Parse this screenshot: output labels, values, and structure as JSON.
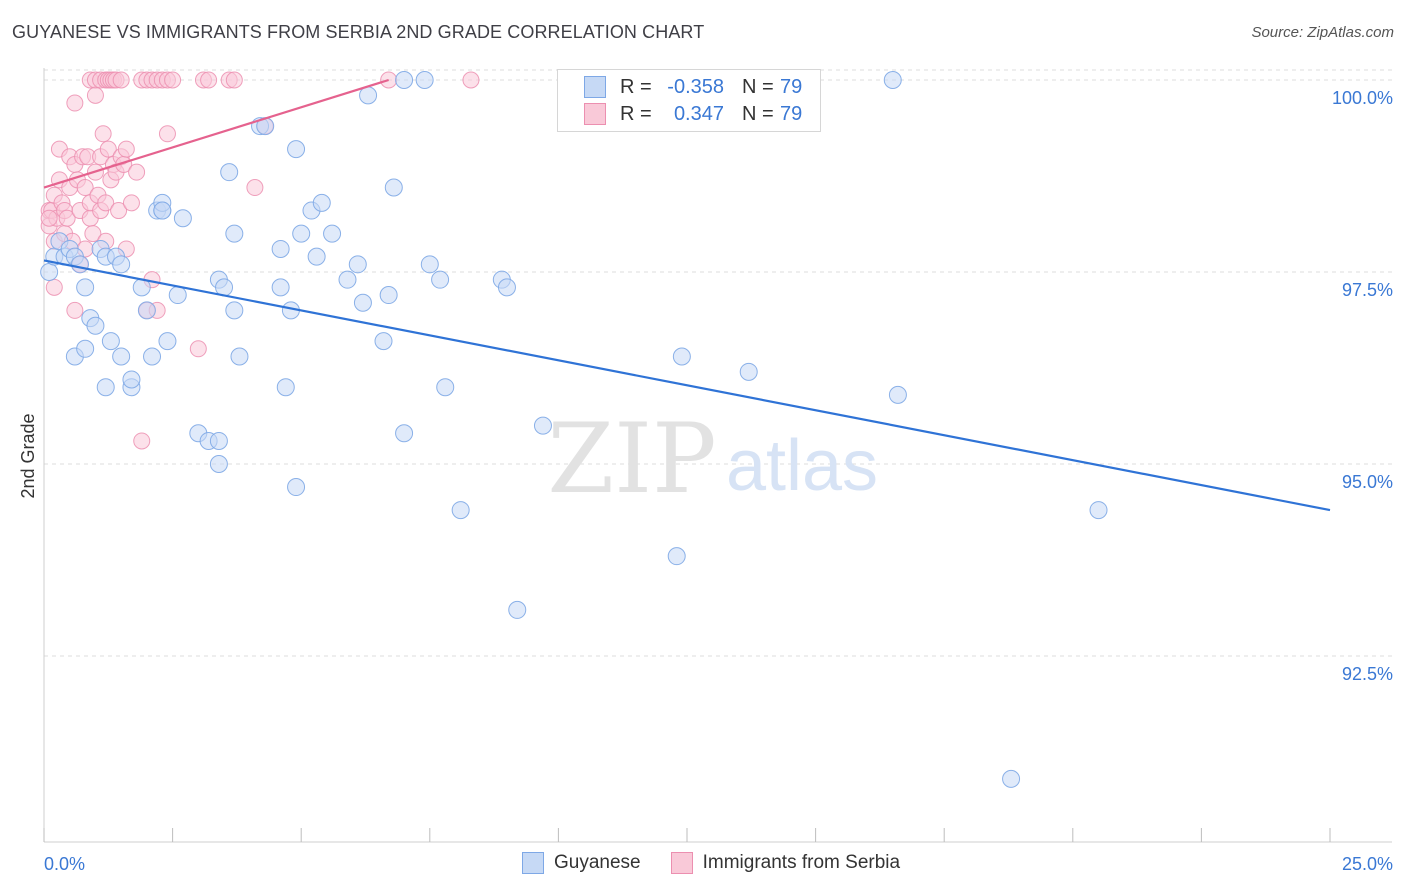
{
  "title": "GUYANESE VS IMMIGRANTS FROM SERBIA 2ND GRADE CORRELATION CHART",
  "source": "Source: ZipAtlas.com",
  "watermark": {
    "zip": "ZIP",
    "atlas": "atlas"
  },
  "legend": {
    "r_label": "R =",
    "n_label": "N =",
    "rows": [
      {
        "name": "Guyanese",
        "r": "-0.358",
        "n": "79"
      },
      {
        "name": "Immigrants from Serbia",
        "r": "0.347",
        "n": "79"
      }
    ]
  },
  "colors": {
    "blue_fill": "#c6d9f5",
    "blue_stroke": "#7ea8e6",
    "blue_line": "#2f73d6",
    "pink_fill": "#f9c9d8",
    "pink_stroke": "#ec8fb0",
    "pink_line": "#e5628e",
    "tick_label": "#3a78d4",
    "grid": "#dcdcdc"
  },
  "chart_data": {
    "type": "scatter",
    "title": "GUYANESE VS IMMIGRANTS FROM SERBIA 2ND GRADE CORRELATION CHART",
    "xlabel": "",
    "ylabel": "2nd Grade",
    "xlim": [
      0,
      25
    ],
    "ylim": [
      90,
      100.2
    ],
    "x_tick_labels": [
      {
        "value": 0,
        "label": "0.0%"
      },
      {
        "value": 25,
        "label": "25.0%"
      }
    ],
    "y_tick_labels": [
      {
        "value": 100,
        "label": "100.0%"
      },
      {
        "value": 97.5,
        "label": "97.5%"
      },
      {
        "value": 95,
        "label": "95.0%"
      },
      {
        "value": 92.5,
        "label": "92.5%"
      }
    ],
    "series": [
      {
        "name": "Guyanese",
        "r": -0.358,
        "n": 79,
        "trend": {
          "x": [
            0,
            25
          ],
          "y": [
            97.65,
            94.4
          ]
        },
        "points": [
          [
            0.1,
            97.5
          ],
          [
            0.2,
            97.7
          ],
          [
            0.3,
            97.9
          ],
          [
            0.4,
            97.7
          ],
          [
            0.5,
            97.8
          ],
          [
            0.6,
            97.7
          ],
          [
            0.7,
            97.6
          ],
          [
            0.8,
            97.3
          ],
          [
            0.9,
            96.9
          ],
          [
            1.0,
            96.8
          ],
          [
            1.1,
            97.8
          ],
          [
            1.2,
            97.7
          ],
          [
            1.3,
            96.6
          ],
          [
            1.4,
            97.7
          ],
          [
            1.5,
            97.6
          ],
          [
            0.6,
            96.4
          ],
          [
            0.8,
            96.5
          ],
          [
            1.2,
            96.0
          ],
          [
            1.5,
            96.4
          ],
          [
            1.7,
            96.0
          ],
          [
            1.7,
            96.1
          ],
          [
            1.9,
            97.3
          ],
          [
            2.1,
            96.4
          ],
          [
            2.2,
            98.3
          ],
          [
            2.3,
            98.3
          ],
          [
            2.3,
            98.4
          ],
          [
            2.4,
            96.6
          ],
          [
            2.6,
            97.2
          ],
          [
            2.7,
            98.2
          ],
          [
            2.0,
            97.0
          ],
          [
            3.0,
            95.4
          ],
          [
            3.2,
            95.3
          ],
          [
            3.4,
            95.0
          ],
          [
            3.4,
            95.3
          ],
          [
            3.4,
            97.4
          ],
          [
            3.5,
            97.3
          ],
          [
            3.6,
            98.8
          ],
          [
            3.7,
            97.0
          ],
          [
            3.7,
            98.0
          ],
          [
            3.8,
            96.4
          ],
          [
            4.2,
            99.4
          ],
          [
            4.3,
            99.4
          ],
          [
            4.6,
            97.3
          ],
          [
            4.6,
            97.8
          ],
          [
            4.8,
            97.0
          ],
          [
            4.9,
            94.7
          ],
          [
            4.9,
            99.1
          ],
          [
            5.0,
            98.0
          ],
          [
            5.2,
            98.3
          ],
          [
            5.3,
            97.7
          ],
          [
            5.4,
            98.4
          ],
          [
            5.6,
            98.0
          ],
          [
            4.7,
            96.0
          ],
          [
            5.9,
            97.4
          ],
          [
            6.1,
            97.6
          ],
          [
            6.2,
            97.1
          ],
          [
            6.3,
            99.8
          ],
          [
            6.6,
            96.6
          ],
          [
            6.7,
            97.2
          ],
          [
            6.8,
            98.6
          ],
          [
            7.0,
            95.4
          ],
          [
            7.0,
            100.0
          ],
          [
            7.4,
            100.0
          ],
          [
            7.5,
            97.6
          ],
          [
            7.7,
            97.4
          ],
          [
            7.8,
            96.0
          ],
          [
            8.1,
            94.4
          ],
          [
            8.9,
            97.4
          ],
          [
            9.0,
            97.3
          ],
          [
            9.2,
            93.1
          ],
          [
            9.7,
            95.5
          ],
          [
            12.3,
            93.8
          ],
          [
            12.4,
            96.4
          ],
          [
            13.7,
            96.2
          ],
          [
            16.5,
            100.0
          ],
          [
            16.6,
            95.9
          ],
          [
            18.8,
            90.9
          ],
          [
            20.5,
            94.4
          ],
          [
            2.3,
            98.3
          ]
        ]
      },
      {
        "name": "Immigrants from Serbia",
        "r": 0.347,
        "n": 79,
        "trend": {
          "x": [
            0,
            6.7
          ],
          "y": [
            98.6,
            100.0
          ]
        },
        "points": [
          [
            0.1,
            98.3
          ],
          [
            0.1,
            98.1
          ],
          [
            0.15,
            98.3
          ],
          [
            0.2,
            98.5
          ],
          [
            0.2,
            97.9
          ],
          [
            0.25,
            98.2
          ],
          [
            0.3,
            98.7
          ],
          [
            0.3,
            99.1
          ],
          [
            0.35,
            98.4
          ],
          [
            0.4,
            98.3
          ],
          [
            0.4,
            98.0
          ],
          [
            0.45,
            98.2
          ],
          [
            0.5,
            99.0
          ],
          [
            0.5,
            98.6
          ],
          [
            0.55,
            97.9
          ],
          [
            0.6,
            99.7
          ],
          [
            0.6,
            98.9
          ],
          [
            0.65,
            98.7
          ],
          [
            0.7,
            98.3
          ],
          [
            0.7,
            97.6
          ],
          [
            0.75,
            99.0
          ],
          [
            0.8,
            98.6
          ],
          [
            0.8,
            97.8
          ],
          [
            0.85,
            99.0
          ],
          [
            0.9,
            98.2
          ],
          [
            0.9,
            98.4
          ],
          [
            0.95,
            98.0
          ],
          [
            1.0,
            99.8
          ],
          [
            1.0,
            98.8
          ],
          [
            1.05,
            98.5
          ],
          [
            1.1,
            99.0
          ],
          [
            1.1,
            98.3
          ],
          [
            1.15,
            99.3
          ],
          [
            1.2,
            98.4
          ],
          [
            1.2,
            97.9
          ],
          [
            1.25,
            99.1
          ],
          [
            1.3,
            98.7
          ],
          [
            1.35,
            98.9
          ],
          [
            1.4,
            98.8
          ],
          [
            1.45,
            98.3
          ],
          [
            1.5,
            99.0
          ],
          [
            1.55,
            98.9
          ],
          [
            1.6,
            99.1
          ],
          [
            1.6,
            97.8
          ],
          [
            1.7,
            98.4
          ],
          [
            1.8,
            98.8
          ],
          [
            0.9,
            100.0
          ],
          [
            1.0,
            100.0
          ],
          [
            1.1,
            100.0
          ],
          [
            1.2,
            100.0
          ],
          [
            1.25,
            100.0
          ],
          [
            1.3,
            100.0
          ],
          [
            1.35,
            100.0
          ],
          [
            1.4,
            100.0
          ],
          [
            1.5,
            100.0
          ],
          [
            1.9,
            100.0
          ],
          [
            2.0,
            100.0
          ],
          [
            2.1,
            100.0
          ],
          [
            2.2,
            100.0
          ],
          [
            2.3,
            100.0
          ],
          [
            2.4,
            100.0
          ],
          [
            2.5,
            100.0
          ],
          [
            3.1,
            100.0
          ],
          [
            3.2,
            100.0
          ],
          [
            3.6,
            100.0
          ],
          [
            3.7,
            100.0
          ],
          [
            6.7,
            100.0
          ],
          [
            8.3,
            100.0
          ],
          [
            2.0,
            97.0
          ],
          [
            2.1,
            97.4
          ],
          [
            2.2,
            97.0
          ],
          [
            2.4,
            99.3
          ],
          [
            1.9,
            95.3
          ],
          [
            3.0,
            96.5
          ],
          [
            4.1,
            98.6
          ],
          [
            4.3,
            99.4
          ],
          [
            0.6,
            97.0
          ],
          [
            0.2,
            97.3
          ],
          [
            0.1,
            98.2
          ]
        ]
      }
    ]
  }
}
